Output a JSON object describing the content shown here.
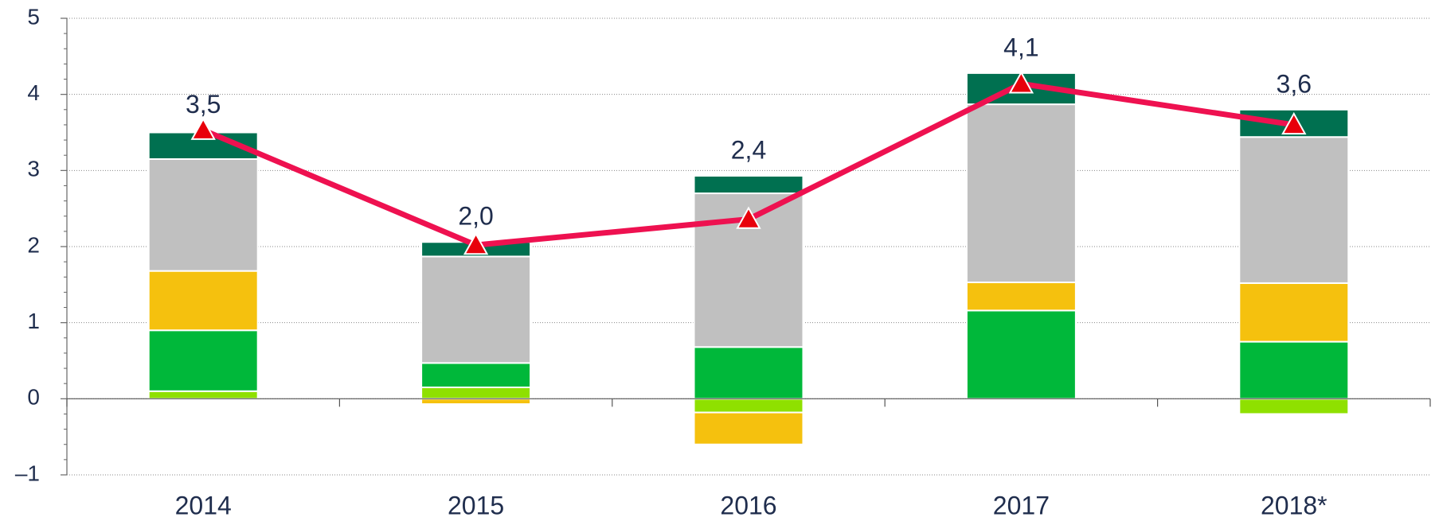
{
  "chart_data": {
    "type": "bar",
    "categories": [
      "2014",
      "2015",
      "2016",
      "2017",
      "2018*"
    ],
    "series": [
      {
        "color": "#8fe000",
        "values": [
          0.1,
          0.15,
          -0.18,
          0,
          -0.2
        ]
      },
      {
        "color": "#00b83a",
        "values": [
          0.8,
          0.32,
          0.68,
          1.16,
          0.75
        ]
      },
      {
        "color": "#f5c10e",
        "values": [
          0.78,
          -0.07,
          -0.42,
          0.37,
          0.77
        ]
      },
      {
        "color": "#c0c0c0",
        "values": [
          1.47,
          1.4,
          2.02,
          2.34,
          1.92
        ]
      },
      {
        "color": "#007050",
        "values": [
          0.35,
          0.19,
          0.23,
          0.41,
          0.36
        ]
      }
    ],
    "line": {
      "type": "line",
      "color": "#ee1150",
      "marker_color": "#e8000b",
      "values": [
        3.53,
        2.02,
        2.36,
        4.14,
        3.6
      ],
      "value_labels": [
        "3,5",
        "2,0",
        "2,4",
        "4,1",
        "3,6"
      ]
    },
    "ylim": [
      -1,
      5
    ],
    "yticks": [
      {
        "value": -1,
        "label": "–1"
      },
      0,
      1,
      2,
      3,
      4,
      5
    ],
    "grid": true
  }
}
